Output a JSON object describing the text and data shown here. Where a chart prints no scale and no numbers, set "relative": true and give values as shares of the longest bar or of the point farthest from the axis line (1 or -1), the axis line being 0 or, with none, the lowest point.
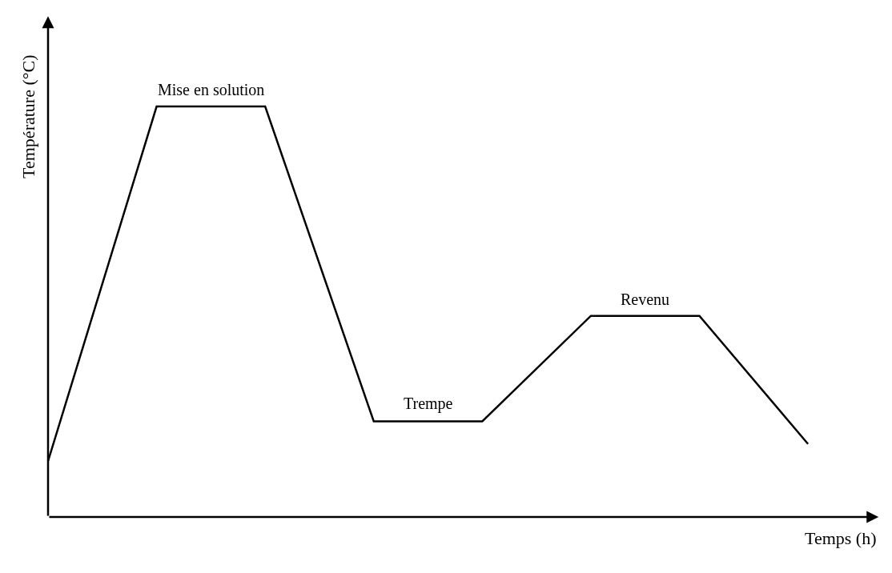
{
  "chart_data": {
    "type": "line",
    "relative": true,
    "xlabel": "Temps (h)",
    "ylabel": "Température (°C)",
    "categories": [
      null,
      null,
      null,
      null,
      null,
      null,
      null,
      null
    ],
    "series": [
      {
        "color": "#000000",
        "values": [
          0.136,
          1,
          1,
          0.233,
          0.233,
          0.49,
          0.49,
          0.178
        ]
      }
    ],
    "annotations": [
      {
        "text": "Mise en solution",
        "y": 1
      },
      {
        "text": "Trempe",
        "y": 0.233
      },
      {
        "text": "Revenu",
        "y": 0.49
      }
    ],
    "marker": "none",
    "line_style": "solid"
  }
}
